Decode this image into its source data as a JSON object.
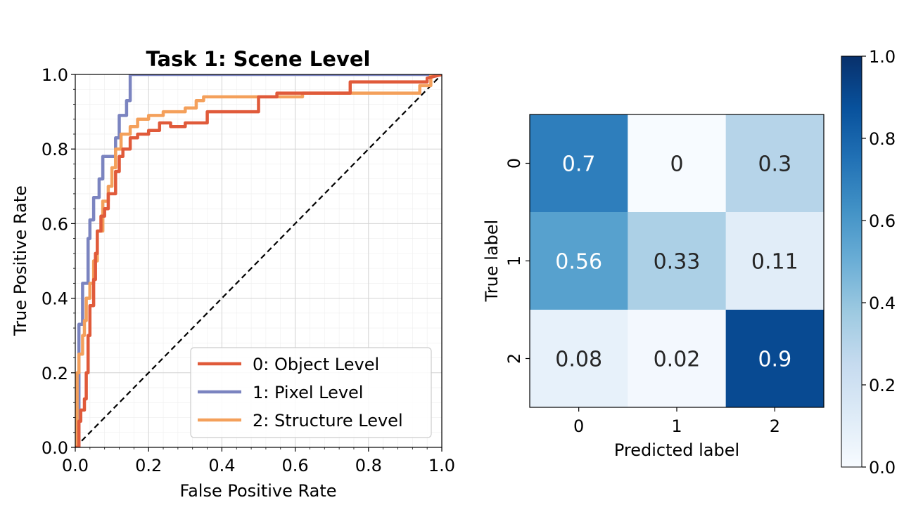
{
  "chart_data": [
    {
      "type": "line",
      "title": "Task 1: Scene Level",
      "xlabel": "False Positive Rate",
      "ylabel": "True Positive Rate",
      "xlim": [
        0,
        1
      ],
      "ylim": [
        0,
        1
      ],
      "xticks": [
        "0.0",
        "0.2",
        "0.4",
        "0.6",
        "0.8",
        "1.0"
      ],
      "yticks": [
        "0.0",
        "0.2",
        "0.4",
        "0.6",
        "0.8",
        "1.0"
      ],
      "grid": true,
      "legend_position": "lower-right",
      "series": [
        {
          "name": "0: Object Level",
          "color": "#e05a3a",
          "x": [
            0,
            0.01,
            0.01,
            0.015,
            0.015,
            0.025,
            0.025,
            0.03,
            0.03,
            0.035,
            0.035,
            0.04,
            0.04,
            0.05,
            0.05,
            0.055,
            0.055,
            0.06,
            0.06,
            0.07,
            0.07,
            0.08,
            0.08,
            0.09,
            0.09,
            0.11,
            0.11,
            0.12,
            0.12,
            0.13,
            0.13,
            0.15,
            0.15,
            0.17,
            0.17,
            0.2,
            0.2,
            0.23,
            0.23,
            0.26,
            0.26,
            0.3,
            0.3,
            0.36,
            0.36,
            0.5,
            0.5,
            0.55,
            0.55,
            0.75,
            0.75,
            0.96,
            0.96,
            1
          ],
          "y": [
            0,
            0,
            0.07,
            0.07,
            0.1,
            0.1,
            0.13,
            0.13,
            0.2,
            0.2,
            0.3,
            0.3,
            0.38,
            0.38,
            0.45,
            0.45,
            0.52,
            0.52,
            0.58,
            0.58,
            0.62,
            0.62,
            0.64,
            0.64,
            0.68,
            0.68,
            0.74,
            0.74,
            0.78,
            0.78,
            0.8,
            0.8,
            0.83,
            0.83,
            0.84,
            0.84,
            0.85,
            0.85,
            0.87,
            0.87,
            0.86,
            0.86,
            0.87,
            0.87,
            0.9,
            0.9,
            0.94,
            0.94,
            0.95,
            0.95,
            0.98,
            0.98,
            0.99,
            1
          ]
        },
        {
          "name": "1: Pixel Level",
          "color": "#7b84c0",
          "x": [
            0,
            0.01,
            0.01,
            0.02,
            0.02,
            0.035,
            0.035,
            0.04,
            0.04,
            0.05,
            0.05,
            0.065,
            0.065,
            0.075,
            0.075,
            0.11,
            0.11,
            0.12,
            0.12,
            0.14,
            0.14,
            0.15,
            0.15,
            0.95,
            0.95,
            1
          ],
          "y": [
            0,
            0,
            0.33,
            0.33,
            0.44,
            0.44,
            0.56,
            0.56,
            0.61,
            0.61,
            0.67,
            0.67,
            0.72,
            0.72,
            0.78,
            0.78,
            0.83,
            0.83,
            0.89,
            0.89,
            0.93,
            0.93,
            1,
            1,
            1,
            1
          ]
        },
        {
          "name": "2: Structure Level",
          "color": "#f4a05b",
          "x": [
            0,
            0.005,
            0.005,
            0.01,
            0.01,
            0.02,
            0.02,
            0.025,
            0.025,
            0.03,
            0.03,
            0.04,
            0.04,
            0.05,
            0.05,
            0.06,
            0.06,
            0.075,
            0.075,
            0.09,
            0.09,
            0.1,
            0.1,
            0.11,
            0.11,
            0.125,
            0.125,
            0.15,
            0.15,
            0.17,
            0.17,
            0.2,
            0.2,
            0.24,
            0.24,
            0.3,
            0.3,
            0.33,
            0.33,
            0.35,
            0.35,
            0.62,
            0.62,
            0.94,
            0.94,
            0.97,
            0.97,
            1
          ],
          "y": [
            0,
            0,
            0.2,
            0.2,
            0.25,
            0.25,
            0.3,
            0.3,
            0.34,
            0.34,
            0.4,
            0.4,
            0.44,
            0.44,
            0.5,
            0.5,
            0.58,
            0.58,
            0.66,
            0.66,
            0.7,
            0.7,
            0.75,
            0.75,
            0.8,
            0.8,
            0.84,
            0.84,
            0.86,
            0.86,
            0.88,
            0.88,
            0.89,
            0.89,
            0.9,
            0.9,
            0.91,
            0.91,
            0.93,
            0.93,
            0.94,
            0.94,
            0.95,
            0.95,
            0.97,
            0.97,
            1,
            1
          ]
        },
        {
          "name": "",
          "color": "#000000",
          "dash": true,
          "x": [
            0,
            1
          ],
          "y": [
            0,
            1
          ]
        }
      ]
    },
    {
      "type": "heatmap",
      "xlabel": "Predicted label",
      "ylabel": "True label",
      "x_categories": [
        "0",
        "1",
        "2"
      ],
      "y_categories": [
        "0",
        "1",
        "2"
      ],
      "values": [
        [
          0.7,
          0,
          0.3
        ],
        [
          0.56,
          0.33,
          0.11
        ],
        [
          0.08,
          0.02,
          0.9
        ]
      ],
      "cell_labels": [
        [
          "0.7",
          "0",
          "0.3"
        ],
        [
          "0.56",
          "0.33",
          "0.11"
        ],
        [
          "0.08",
          "0.02",
          "0.9"
        ]
      ],
      "colormap": "Blues",
      "colorbar": {
        "range": [
          0,
          1
        ],
        "ticks": [
          "0.0",
          "0.2",
          "0.4",
          "0.6",
          "0.8",
          "1.0"
        ]
      }
    }
  ]
}
